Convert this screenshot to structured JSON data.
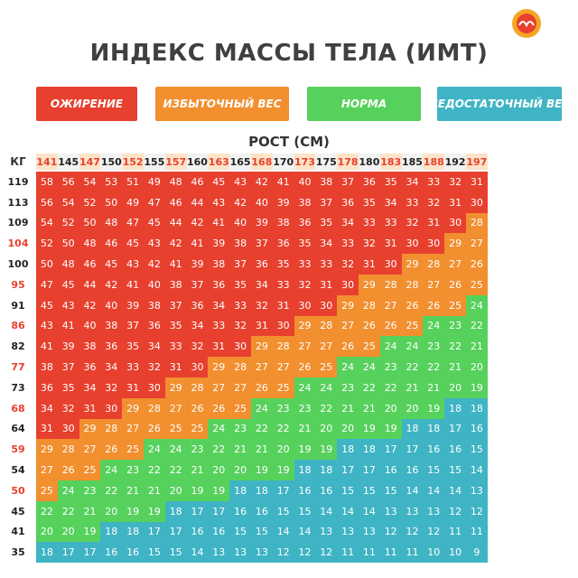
{
  "title": "ИНДЕКС МАССЫ ТЕЛА (ИМТ)",
  "legend": [
    {
      "label": "ОЖИРЕНИЕ",
      "color": "#e8402e"
    },
    {
      "label": "ИЗБЫТОЧНЫЙ ВЕС",
      "color": "#f28f2f"
    },
    {
      "label": "НОРМА",
      "color": "#56d15c"
    },
    {
      "label": "НЕДОСТАТОЧНЫЙ ВЕС",
      "color": "#3fb4c4"
    }
  ],
  "colors": {
    "obesity": "#e8402e",
    "overweight": "#f28f2f",
    "normal": "#56d15c",
    "underweight": "#3fb4c4",
    "header_bg": "#f2f2f2",
    "header_text_orange": "#e8402e"
  },
  "chart_data": {
    "type": "heatmap",
    "title": "ИНДЕКС МАССЫ ТЕЛА (ИМТ)",
    "xlabel": "РОСТ (СМ)",
    "ylabel": "КГ",
    "x": [
      141,
      145,
      147,
      150,
      152,
      155,
      157,
      160,
      163,
      165,
      168,
      170,
      173,
      175,
      178,
      180,
      183,
      185,
      188,
      192,
      197
    ],
    "y": [
      119,
      113,
      109,
      104,
      100,
      95,
      91,
      86,
      82,
      77,
      73,
      68,
      64,
      59,
      54,
      50,
      45,
      41,
      35
    ],
    "values": [
      [
        58,
        56,
        54,
        53,
        51,
        49,
        48,
        46,
        45,
        43,
        42,
        41,
        40,
        38,
        37,
        36,
        35,
        34,
        33,
        32,
        31
      ],
      [
        56,
        54,
        52,
        50,
        49,
        47,
        46,
        44,
        43,
        42,
        40,
        39,
        38,
        37,
        36,
        35,
        34,
        33,
        32,
        31,
        30
      ],
      [
        54,
        52,
        50,
        48,
        47,
        45,
        44,
        42,
        41,
        40,
        39,
        38,
        36,
        35,
        34,
        33,
        33,
        32,
        31,
        30,
        28
      ],
      [
        52,
        50,
        48,
        46,
        45,
        43,
        42,
        41,
        39,
        38,
        37,
        36,
        35,
        34,
        33,
        32,
        31,
        30,
        30,
        29,
        27
      ],
      [
        50,
        48,
        46,
        45,
        43,
        42,
        41,
        39,
        38,
        37,
        36,
        35,
        33,
        33,
        32,
        31,
        30,
        29,
        28,
        27,
        26
      ],
      [
        47,
        45,
        44,
        42,
        41,
        40,
        38,
        37,
        36,
        35,
        34,
        33,
        32,
        31,
        30,
        29,
        28,
        28,
        27,
        26,
        25
      ],
      [
        45,
        43,
        42,
        40,
        39,
        38,
        37,
        36,
        34,
        33,
        32,
        31,
        30,
        30,
        29,
        28,
        27,
        26,
        26,
        25,
        24
      ],
      [
        43,
        41,
        40,
        38,
        37,
        36,
        35,
        34,
        33,
        32,
        31,
        30,
        29,
        28,
        27,
        26,
        26,
        25,
        24,
        23,
        22
      ],
      [
        41,
        39,
        38,
        36,
        35,
        34,
        33,
        32,
        31,
        30,
        29,
        28,
        27,
        27,
        26,
        25,
        24,
        24,
        23,
        22,
        21
      ],
      [
        38,
        37,
        36,
        34,
        33,
        32,
        31,
        30,
        29,
        28,
        27,
        27,
        26,
        25,
        24,
        24,
        23,
        22,
        22,
        21,
        20
      ],
      [
        36,
        35,
        34,
        32,
        31,
        30,
        29,
        28,
        27,
        27,
        26,
        25,
        24,
        24,
        23,
        22,
        22,
        21,
        21,
        20,
        19
      ],
      [
        34,
        32,
        31,
        30,
        29,
        28,
        27,
        26,
        26,
        25,
        24,
        23,
        23,
        22,
        21,
        21,
        20,
        20,
        19,
        18,
        18
      ],
      [
        31,
        30,
        29,
        28,
        27,
        26,
        25,
        25,
        24,
        23,
        22,
        22,
        21,
        20,
        20,
        19,
        19,
        18,
        18,
        17,
        16
      ],
      [
        29,
        28,
        27,
        26,
        25,
        24,
        24,
        23,
        22,
        21,
        21,
        20,
        19,
        19,
        18,
        18,
        17,
        17,
        16,
        16,
        15
      ],
      [
        27,
        26,
        25,
        24,
        23,
        22,
        22,
        21,
        20,
        20,
        19,
        19,
        18,
        18,
        17,
        17,
        16,
        16,
        15,
        15,
        14
      ],
      [
        25,
        24,
        23,
        22,
        21,
        21,
        20,
        19,
        19,
        18,
        18,
        17,
        16,
        16,
        15,
        15,
        15,
        14,
        14,
        14,
        13
      ],
      [
        22,
        22,
        21,
        20,
        19,
        19,
        18,
        17,
        17,
        16,
        16,
        15,
        15,
        14,
        14,
        14,
        13,
        13,
        13,
        12,
        12
      ],
      [
        20,
        20,
        19,
        18,
        18,
        17,
        17,
        16,
        16,
        15,
        15,
        14,
        14,
        13,
        13,
        13,
        12,
        12,
        12,
        11,
        11
      ],
      [
        18,
        17,
        17,
        16,
        16,
        15,
        15,
        14,
        13,
        13,
        13,
        12,
        12,
        12,
        11,
        11,
        11,
        11,
        10,
        10,
        9
      ]
    ],
    "categories": [
      {
        "label": "ОЖИРЕНИЕ",
        "min": 30
      },
      {
        "label": "ИЗБЫТОЧНЫЙ ВЕС",
        "min": 25,
        "max": 29
      },
      {
        "label": "НОРМА",
        "min": 19,
        "max": 24
      },
      {
        "label": "НЕДОСТАТОЧНЫЙ ВЕС",
        "max": 18
      }
    ],
    "orange_highlighted_x": [
      141,
      147,
      152,
      157,
      163,
      168,
      173,
      178,
      183,
      188,
      197
    ],
    "orange_highlighted_y": [
      104,
      95,
      86,
      77,
      68,
      59,
      50
    ]
  }
}
